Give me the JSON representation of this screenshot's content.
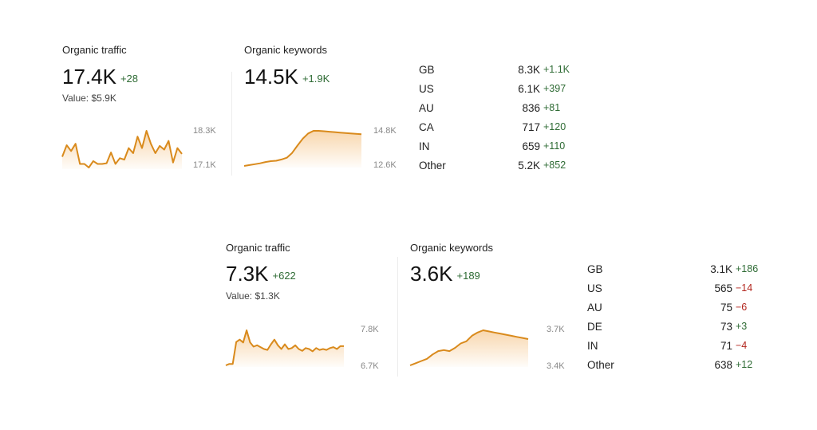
{
  "top": {
    "traffic": {
      "label": "Organic traffic",
      "value": "17.4K",
      "delta": "+28",
      "value_text": "Value: $5.9K",
      "axis_max": "18.3K",
      "axis_min": "17.1K",
      "series": [
        40,
        56,
        48,
        58,
        30,
        30,
        25,
        34,
        30,
        30,
        31,
        46,
        30,
        38,
        36,
        52,
        45,
        68,
        52,
        76,
        58,
        45,
        55,
        50,
        62,
        32,
        52,
        44
      ]
    },
    "keywords": {
      "label": "Organic keywords",
      "value": "14.5K",
      "delta": "+1.9K",
      "axis_max": "14.8K",
      "axis_min": "12.6K",
      "series": [
        5,
        7,
        9,
        11,
        14,
        16,
        17,
        20,
        24,
        35,
        52,
        68,
        80,
        86,
        86,
        85,
        84,
        83,
        82,
        81,
        80,
        79,
        78
      ]
    },
    "countries": [
      {
        "name": "GB",
        "value": "8.3K",
        "delta": "+1.1K",
        "negative": false
      },
      {
        "name": "US",
        "value": "6.1K",
        "delta": "+397",
        "negative": false
      },
      {
        "name": "AU",
        "value": "836",
        "delta": "+81",
        "negative": false
      },
      {
        "name": "CA",
        "value": "717",
        "delta": "+120",
        "negative": false
      },
      {
        "name": "IN",
        "value": "659",
        "delta": "+110",
        "negative": false
      },
      {
        "name": "Other",
        "value": "5.2K",
        "delta": "+852",
        "negative": false
      }
    ]
  },
  "bottom": {
    "traffic": {
      "label": "Organic traffic",
      "value": "7.3K",
      "delta": "+622",
      "value_text": "Value: $1.3K",
      "axis_max": "7.8K",
      "axis_min": "6.7K",
      "series": [
        5,
        8,
        8,
        55,
        60,
        54,
        80,
        54,
        45,
        48,
        44,
        40,
        38,
        50,
        60,
        48,
        40,
        50,
        40,
        42,
        48,
        40,
        36,
        42,
        40,
        35,
        42,
        38,
        40,
        38,
        42,
        44,
        40,
        46,
        46
      ]
    },
    "keywords": {
      "label": "Organic keywords",
      "value": "3.6K",
      "delta": "+189",
      "axis_max": "3.7K",
      "axis_min": "3.4K",
      "series": [
        8,
        12,
        16,
        20,
        28,
        34,
        36,
        34,
        40,
        48,
        52,
        62,
        68,
        72,
        70,
        68,
        66,
        64,
        62,
        60,
        58,
        56
      ]
    },
    "countries": [
      {
        "name": "GB",
        "value": "3.1K",
        "delta": "+186",
        "negative": false
      },
      {
        "name": "US",
        "value": "565",
        "delta": "−14",
        "negative": true
      },
      {
        "name": "AU",
        "value": "75",
        "delta": "−6",
        "negative": true
      },
      {
        "name": "DE",
        "value": "73",
        "delta": "+3",
        "negative": false
      },
      {
        "name": "IN",
        "value": "71",
        "delta": "−4",
        "negative": true
      },
      {
        "name": "Other",
        "value": "638",
        "delta": "+12",
        "negative": false
      }
    ]
  },
  "colors": {
    "line": "#d98a1c",
    "fill_top": "#f6c992",
    "positive": "#2e6b34",
    "negative": "#b3261e"
  }
}
